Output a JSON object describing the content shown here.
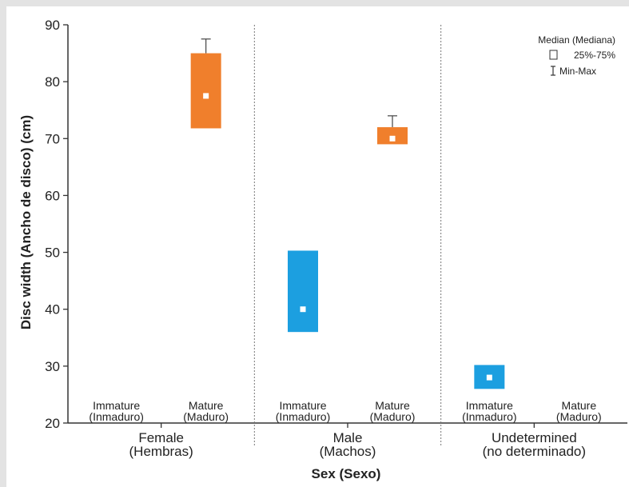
{
  "chart_data": {
    "type": "box",
    "title": "",
    "ylabel": "Disc width (Ancho de disco) (cm)",
    "xlabel": "Sex (Sexo)",
    "ylim": [
      20,
      90
    ],
    "yticks": [
      20,
      30,
      40,
      50,
      60,
      70,
      80,
      90
    ],
    "groups": [
      {
        "label_line1": "Female",
        "label_line2": "(Hembras)",
        "categories": [
          {
            "line1": "Immature",
            "line2": "(Inmaduro)",
            "median": null,
            "q1": null,
            "q3": null,
            "min": null,
            "max": null,
            "color": "#f07f2c"
          },
          {
            "line1": "Mature",
            "line2": "(Maduro)",
            "median": 77.5,
            "q1": 71.8,
            "q3": 85.0,
            "min": 71.8,
            "max": 87.5,
            "color": "#f07f2c"
          }
        ]
      },
      {
        "label_line1": "Male",
        "label_line2": "(Machos)",
        "categories": [
          {
            "line1": "Immature",
            "line2": "(Inmaduro)",
            "median": 40.0,
            "q1": 36.0,
            "q3": 50.3,
            "min": 36.0,
            "max": 50.3,
            "color": "#1c9fe0"
          },
          {
            "line1": "Mature",
            "line2": "(Maduro)",
            "median": 70.0,
            "q1": 69.0,
            "q3": 72.0,
            "min": 69.0,
            "max": 74.0,
            "color": "#f07f2c"
          }
        ]
      },
      {
        "label_line1": "Undetermined",
        "label_line2": "(no determinado)",
        "categories": [
          {
            "line1": "Immature",
            "line2": "(Inmaduro)",
            "median": 28.0,
            "q1": 26.0,
            "q3": 30.2,
            "min": 26.0,
            "max": 30.2,
            "color": "#1c9fe0"
          },
          {
            "line1": "Mature",
            "line2": "(Maduro)",
            "median": null,
            "q1": null,
            "q3": null,
            "min": null,
            "max": null,
            "color": "#1c9fe0"
          }
        ]
      }
    ],
    "legend": {
      "placement": "top-right",
      "median": "Median (Mediana)",
      "box": "25%-75%",
      "whisker": "Min-Max"
    },
    "colors": {
      "female_mature": "#f07f2c",
      "immature": "#1c9fe0",
      "axis": "#333333",
      "separator": "#777777"
    }
  }
}
